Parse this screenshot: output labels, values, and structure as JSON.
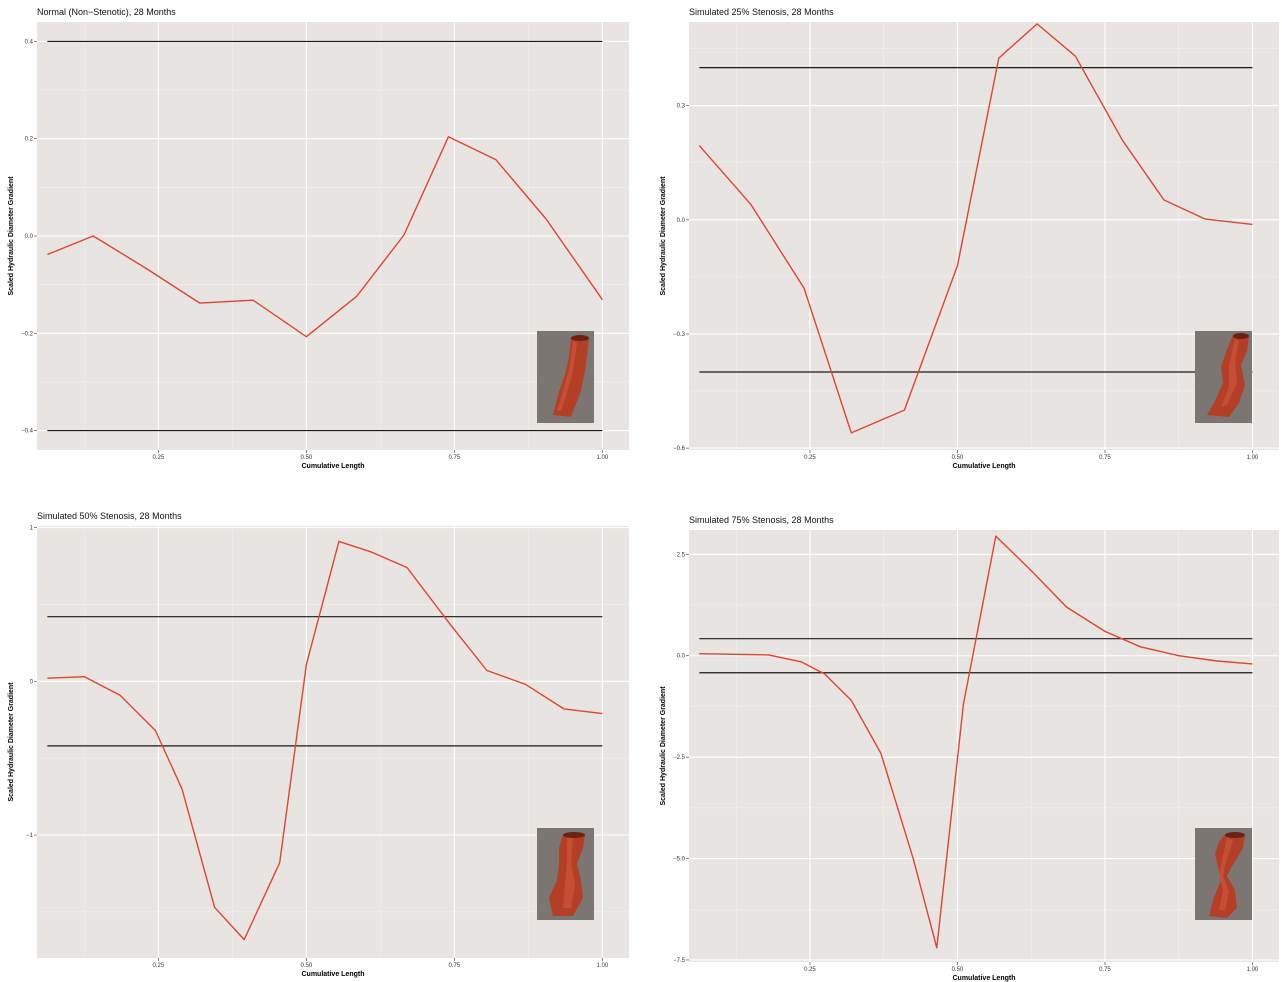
{
  "colors": {
    "panel_bg": "#e8e4e1",
    "grid": "#ffffff",
    "series_line": "#e0452f",
    "threshold_line": "#1a1a1a",
    "vessel_bg": "#7c7672",
    "vessel": "#b43f27"
  },
  "chart_data": [
    {
      "type": "line",
      "title": "Normal (Non−Stenotic), 28 Months",
      "xlabel": "Cumulative Length",
      "ylabel": "Scaled Hydraulic Diameter Gradient",
      "xlim": [
        0.045,
        1.045
      ],
      "ylim": [
        -0.44,
        0.44
      ],
      "x_ticks": [
        0.25,
        0.5,
        0.75,
        1.0
      ],
      "x_tick_labels": [
        "0.25",
        "0.50",
        "0.75",
        "1.00"
      ],
      "y_ticks": [
        -0.4,
        -0.2,
        0.0,
        0.2,
        0.4
      ],
      "y_tick_labels": [
        "−0.4",
        "−0.2",
        "0.0",
        "0.2",
        "0.4"
      ],
      "thresholds": [
        0.4,
        -0.4
      ],
      "grid": true,
      "inset": "vessel-normal",
      "series": [
        {
          "x": [
            0.0625,
            0.14,
            0.23,
            0.32,
            0.41,
            0.5,
            0.585,
            0.665,
            0.74,
            0.82,
            0.905,
            1.0
          ],
          "values": [
            -0.038,
            0.0,
            -0.067,
            -0.138,
            -0.132,
            -0.207,
            -0.124,
            0.002,
            0.204,
            0.157,
            0.035,
            -0.131
          ]
        }
      ]
    },
    {
      "type": "line",
      "title": "Simulated 25% Stenosis, 28 Months",
      "xlabel": "Cumulative Length",
      "ylabel": "Scaled Hydraulic Diameter Gradient",
      "xlim": [
        0.045,
        1.045
      ],
      "ylim": [
        -0.605,
        0.52
      ],
      "x_ticks": [
        0.25,
        0.5,
        0.75,
        1.0
      ],
      "x_tick_labels": [
        "0.25",
        "0.50",
        "0.75",
        "1.00"
      ],
      "y_ticks": [
        -0.6,
        -0.3,
        0.0,
        0.3
      ],
      "y_tick_labels": [
        "−0.6",
        "−0.3",
        "0.0",
        "0.3"
      ],
      "thresholds": [
        0.4,
        -0.4
      ],
      "grid": true,
      "inset": "vessel-25",
      "series": [
        {
          "x": [
            0.0625,
            0.15,
            0.24,
            0.32,
            0.41,
            0.5,
            0.57,
            0.635,
            0.7,
            0.78,
            0.85,
            0.92,
            1.0
          ],
          "values": [
            0.195,
            0.04,
            -0.18,
            -0.56,
            -0.5,
            -0.12,
            0.425,
            0.515,
            0.43,
            0.208,
            0.052,
            0.002,
            -0.012
          ]
        }
      ]
    },
    {
      "type": "line",
      "title": "Simulated 50% Stenosis, 28 Months",
      "xlabel": "Cumulative Length",
      "ylabel": "Scaled Hydraulic Diameter Gradient",
      "xlim": [
        0.045,
        1.045
      ],
      "ylim": [
        -1.8,
        1.01
      ],
      "x_ticks": [
        0.25,
        0.5,
        0.75,
        1.0
      ],
      "x_tick_labels": [
        "0.25",
        "0.50",
        "0.75",
        "1.00"
      ],
      "y_ticks": [
        -1,
        0,
        1
      ],
      "y_tick_labels": [
        "−1",
        "0",
        "1"
      ],
      "thresholds": [
        0.42,
        -0.42
      ],
      "grid": true,
      "inset": "vessel-50",
      "series": [
        {
          "x": [
            0.0625,
            0.125,
            0.185,
            0.245,
            0.29,
            0.345,
            0.395,
            0.455,
            0.5,
            0.555,
            0.61,
            0.67,
            0.745,
            0.805,
            0.87,
            0.935,
            1.0
          ],
          "values": [
            0.02,
            0.03,
            -0.09,
            -0.32,
            -0.7,
            -1.47,
            -1.68,
            -1.18,
            0.11,
            0.91,
            0.84,
            0.74,
            0.36,
            0.07,
            -0.02,
            -0.18,
            -0.21
          ]
        }
      ]
    },
    {
      "type": "line",
      "title": "Simulated 75% Stenosis, 28 Months",
      "xlabel": "Cumulative Length",
      "ylabel": "Scaled Hydraulic Diameter Gradient",
      "xlim": [
        0.045,
        1.045
      ],
      "ylim": [
        -7.55,
        3.1
      ],
      "x_ticks": [
        0.25,
        0.5,
        0.75,
        1.0
      ],
      "x_tick_labels": [
        "0.25",
        "0.50",
        "0.75",
        "1.00"
      ],
      "y_ticks": [
        -7.5,
        -5.0,
        -2.5,
        0.0,
        2.5
      ],
      "y_tick_labels": [
        "−7.5",
        "−5.0",
        "−2.5",
        "0.0",
        "2.5"
      ],
      "thresholds": [
        0.42,
        -0.42
      ],
      "grid": true,
      "inset": "vessel-75",
      "series": [
        {
          "x": [
            0.0625,
            0.18,
            0.235,
            0.275,
            0.32,
            0.37,
            0.425,
            0.465,
            0.51,
            0.565,
            0.625,
            0.685,
            0.75,
            0.81,
            0.875,
            0.94,
            1.0
          ],
          "values": [
            0.05,
            0.02,
            -0.15,
            -0.45,
            -1.1,
            -2.4,
            -5.0,
            -7.2,
            -1.2,
            2.95,
            2.1,
            1.2,
            0.6,
            0.22,
            0.0,
            -0.13,
            -0.2
          ]
        }
      ]
    }
  ]
}
